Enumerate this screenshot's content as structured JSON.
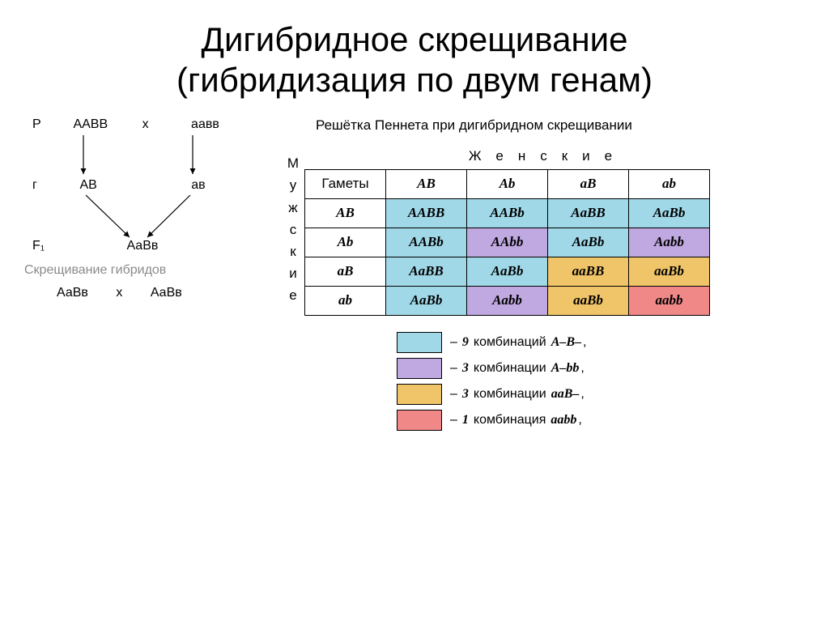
{
  "title_line1": "Дигибридное скрещивание",
  "title_line2": "(гибридизация по двум генам)",
  "cross": {
    "P_label": "P",
    "P_genotype1": "ААВВ",
    "P_x": "х",
    "P_genotype2": "аавв",
    "G_label": "г",
    "G_gamete1": "АВ",
    "G_gamete2": "ав",
    "F1_label": "F₁",
    "F1_genotype": "АаВв",
    "hybrid_label": "Скрещивание гибридов",
    "H_genotype1": "АаВв",
    "H_x": "х",
    "H_genotype2": "АаВв"
  },
  "table_title": "Решётка Пеннета при дигибридном скрещивании",
  "female_label": "Женские",
  "male_label_chars": [
    "М",
    "у",
    "ж",
    "с",
    "к",
    "и",
    "е"
  ],
  "gametes_header": "Гаметы",
  "col_gametes": [
    "AB",
    "Ab",
    "aB",
    "ab"
  ],
  "row_gametes": [
    "AB",
    "Ab",
    "aB",
    "ab"
  ],
  "cells": [
    [
      "AABB",
      "AABb",
      "AaBB",
      "AaBb"
    ],
    [
      "AABb",
      "AAbb",
      "AaBb",
      "Aabb"
    ],
    [
      "AaBB",
      "AaBb",
      "aaBB",
      "aaBb"
    ],
    [
      "AaBb",
      "Aabb",
      "aaBb",
      "aabb"
    ]
  ],
  "colors": {
    "blue": "#a0d8e8",
    "purple": "#c0a8e0",
    "orange": "#f0c468",
    "red": "#f08888",
    "white": "#ffffff",
    "border": "#000000"
  },
  "cellColors": [
    [
      "blue",
      "blue",
      "blue",
      "blue"
    ],
    [
      "blue",
      "purple",
      "blue",
      "purple"
    ],
    [
      "blue",
      "blue",
      "orange",
      "orange"
    ],
    [
      "blue",
      "purple",
      "orange",
      "red"
    ]
  ],
  "legend": [
    {
      "color": "blue",
      "count": "9",
      "word": "комбинаций",
      "geno": "A–B–"
    },
    {
      "color": "purple",
      "count": "3",
      "word": "комбинации",
      "geno": "A–bb"
    },
    {
      "color": "orange",
      "count": "3",
      "word": "комбинации",
      "geno": "aaB–"
    },
    {
      "color": "red",
      "count": "1",
      "word": "комбинация",
      "geno": "aabb"
    }
  ]
}
